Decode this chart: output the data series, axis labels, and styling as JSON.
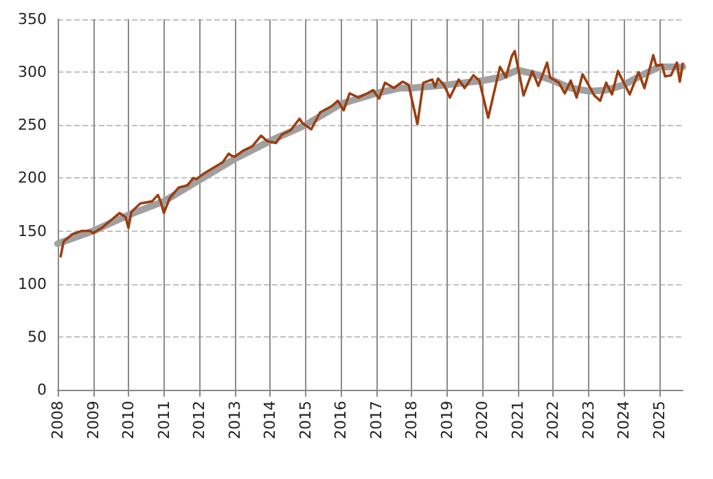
{
  "chart_data": {
    "type": "line",
    "ylim": [
      0,
      350
    ],
    "yticks": [
      0,
      50,
      100,
      150,
      200,
      250,
      300,
      350
    ],
    "xlim": [
      "2008-01",
      "2025-09"
    ],
    "xticks": [
      "2008",
      "2009",
      "2010",
      "2011",
      "2012",
      "2013",
      "2014",
      "2015",
      "2016",
      "2017",
      "2018",
      "2019",
      "2020",
      "2021",
      "2022",
      "2023",
      "2024",
      "2025"
    ],
    "grid": true,
    "marker": "none",
    "line_style": "solid",
    "series": [
      {
        "color": "#a0a0a0",
        "x": [
          "2008-01",
          "2009-01",
          "2010-01",
          "2011-01",
          "2012-01",
          "2013-01",
          "2014-01",
          "2015-01",
          "2016-01",
          "2017-01",
          "2017-09",
          "2018-01",
          "2019-01",
          "2020-01",
          "2020-07",
          "2021-01",
          "2021-07",
          "2022-01",
          "2022-07",
          "2023-01",
          "2023-07",
          "2024-01",
          "2024-07",
          "2025-01",
          "2025-09"
        ],
        "values": [
          138,
          150,
          165,
          178,
          198,
          218,
          235,
          250,
          270,
          280,
          285,
          285,
          288,
          292,
          295,
          302,
          298,
          292,
          285,
          282,
          283,
          288,
          297,
          305,
          305
        ]
      },
      {
        "color": "#9c3d10",
        "x": [
          "2008-02",
          "2008-03",
          "2008-06",
          "2008-09",
          "2008-12",
          "2009-01",
          "2009-04",
          "2009-07",
          "2009-10",
          "2009-12",
          "2010-01",
          "2010-02",
          "2010-05",
          "2010-09",
          "2010-11",
          "2010-12",
          "2011-01",
          "2011-03",
          "2011-06",
          "2011-09",
          "2011-11",
          "2011-12",
          "2012-01",
          "2012-03",
          "2012-06",
          "2012-09",
          "2012-11",
          "2012-12",
          "2013-01",
          "2013-04",
          "2013-07",
          "2013-10",
          "2013-12",
          "2014-03",
          "2014-05",
          "2014-08",
          "2014-11",
          "2014-12",
          "2015-03",
          "2015-06",
          "2015-08",
          "2015-10",
          "2015-12",
          "2016-02",
          "2016-04",
          "2016-07",
          "2016-10",
          "2016-12",
          "2017-02",
          "2017-04",
          "2017-07",
          "2017-10",
          "2017-12",
          "2018-03",
          "2018-05",
          "2018-08",
          "2018-09",
          "2018-10",
          "2018-12",
          "2019-02",
          "2019-05",
          "2019-07",
          "2019-10",
          "2019-12",
          "2020-03",
          "2020-07",
          "2020-09",
          "2020-11",
          "2020-12",
          "2021-03",
          "2021-06",
          "2021-08",
          "2021-11",
          "2021-12",
          "2022-03",
          "2022-05",
          "2022-07",
          "2022-09",
          "2022-11",
          "2023-03",
          "2023-05",
          "2023-07",
          "2023-09",
          "2023-11",
          "2024-03",
          "2024-06",
          "2024-08",
          "2024-11",
          "2024-12",
          "2025-02",
          "2025-03",
          "2025-05",
          "2025-07",
          "2025-08",
          "2025-09"
        ],
        "values": [
          126,
          140,
          147,
          150,
          150,
          148,
          153,
          160,
          167,
          163,
          153,
          168,
          176,
          178,
          184,
          177,
          167,
          181,
          191,
          193,
          200,
          199,
          201,
          205,
          210,
          215,
          223,
          221,
          220,
          226,
          230,
          240,
          235,
          233,
          241,
          245,
          256,
          252,
          246,
          262,
          265,
          268,
          273,
          264,
          280,
          276,
          280,
          283,
          275,
          290,
          285,
          291,
          288,
          251,
          290,
          293,
          286,
          294,
          288,
          276,
          293,
          285,
          297,
          292,
          257,
          305,
          295,
          315,
          320,
          278,
          301,
          287,
          309,
          295,
          290,
          280,
          292,
          276,
          298,
          278,
          273,
          290,
          279,
          301,
          279,
          300,
          285,
          316,
          306,
          307,
          296,
          297,
          309,
          291,
          308
        ]
      }
    ]
  }
}
